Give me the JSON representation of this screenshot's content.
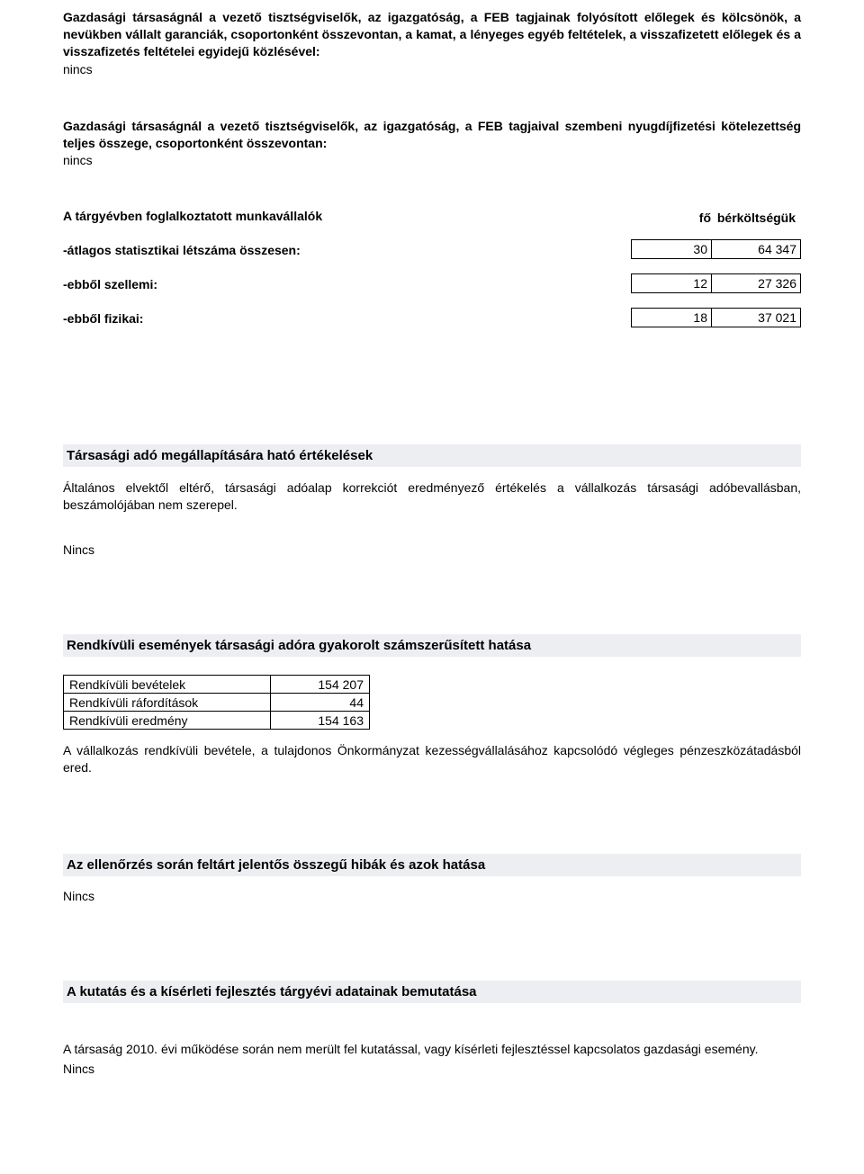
{
  "para1": "Gazdasági társaságnál a vezető tisztségviselők, az igazgatóság, a FEB tagjainak folyósított előlegek és kölcsönök, a nevükben vállalt garanciák, csoportonként összevontan, a kamat, a lényeges egyéb feltételek, a visszafizetett előlegek és a visszafizetés feltételei egyidejű közlésével:",
  "nincs": "nincs",
  "para2": "Gazdasági társaságnál a vezető tisztségviselők, az igazgatóság, a FEB tagjaival szembeni nyugdíjfizetési kötelezettség teljes összege, csoportonként összevontan:",
  "emp": {
    "header": "A tárgyévben foglalkoztatott munkavállalók",
    "col_fo": "fő",
    "col_cost": "bérköltségük",
    "rows": [
      {
        "label": "-átlagos statisztikai létszáma összesen:",
        "fo": "30",
        "cost": "64 347"
      },
      {
        "label": "-ebből szellemi:",
        "fo": "12",
        "cost": "27 326"
      },
      {
        "label": "-ebből fizikai:",
        "fo": "18",
        "cost": "37 021"
      }
    ]
  },
  "sec_tarsasagi": {
    "title": "Társasági adó megállapítására ható értékelések",
    "body": "Általános elvektől eltérő, társasági adóalap korrekciót eredményező értékelés a vállalkozás társasági adóbevallásban, beszámolójában nem szerepel.",
    "nincs": "Nincs"
  },
  "sec_rendk": {
    "title": "Rendkívüli események társasági adóra gyakorolt számszerűsített hatása",
    "table": [
      {
        "label": "Rendkívüli bevételek",
        "value": "154 207"
      },
      {
        "label": "Rendkívüli ráfordítások",
        "value": "44"
      },
      {
        "label": "Rendkívüli eredmény",
        "value": "154 163"
      }
    ],
    "body": "A vállalkozás rendkívüli bevétele, a tulajdonos Önkormányzat kezességvállalásához kapcsolódó végleges pénzeszközátadásból ered."
  },
  "sec_ellen": {
    "title": "Az ellenőrzés során feltárt jelentős összegű hibák és azok hatása",
    "nincs": "Nincs"
  },
  "sec_kutatas": {
    "title": "A kutatás és a kísérleti fejlesztés tárgyévi adatainak bemutatása",
    "body": "A társaság 2010. évi működése során nem merült fel kutatással, vagy kísérleti fejlesztéssel kapcsolatos gazdasági esemény.",
    "nincs": "Nincs"
  }
}
